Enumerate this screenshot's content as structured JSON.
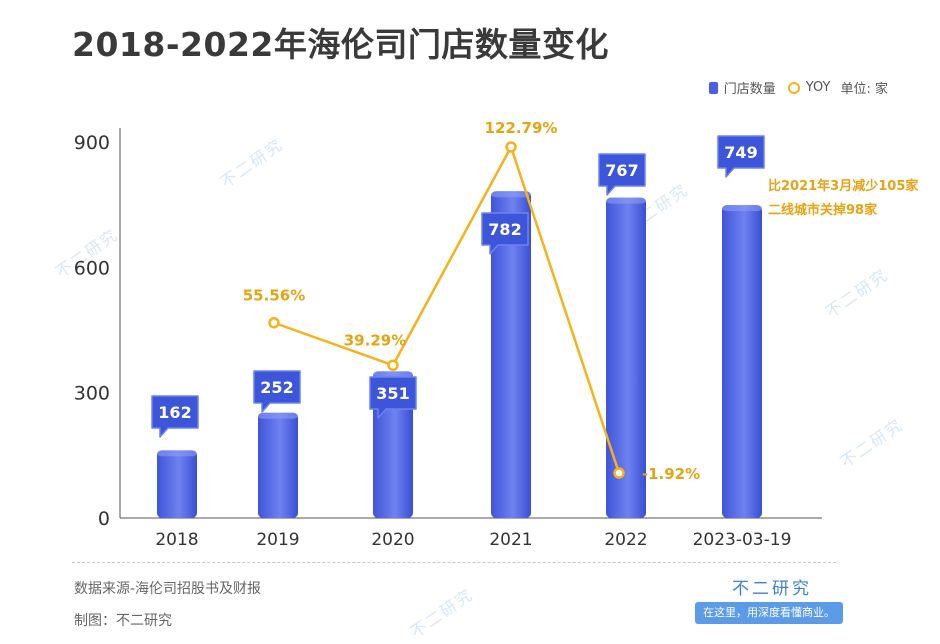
{
  "title": "2018-2022年海伦司门店数量变化",
  "legend": {
    "bar_label": "门店数量",
    "line_label": "YOY",
    "unit": "单位: 家"
  },
  "colors": {
    "bar": "#4b5fe0",
    "bar_light": "#8c9df6",
    "line": "#f5b21a",
    "annotation": "#e6a313",
    "callout": "#3d55d9"
  },
  "chart_data": {
    "type": "bar",
    "categories": [
      "2018",
      "2019",
      "2020",
      "2021",
      "2022",
      "2023-03-19"
    ],
    "series": [
      {
        "name": "门店数量",
        "type": "bar",
        "values": [
          162,
          252,
          351,
          782,
          767,
          749
        ],
        "labels": [
          "162",
          "252",
          "351",
          "782",
          "767",
          "749"
        ]
      },
      {
        "name": "YOY",
        "type": "line",
        "values": [
          null,
          55.56,
          39.29,
          122.79,
          -1.92,
          null
        ],
        "labels": [
          "",
          "55.56%",
          "39.29%",
          "122.79%",
          "-1.92%",
          ""
        ]
      }
    ],
    "yticks": [
      0,
      300,
      600,
      900
    ],
    "ylim": [
      0,
      900
    ],
    "unit": "单位: 家",
    "annotation_lines": [
      "比2021年3月减少105家",
      "二线城市关掉98家"
    ]
  },
  "footer": {
    "source": "数据来源-海伦司招股书及财报",
    "maker": "制图：不二研究"
  },
  "brand": {
    "name": "不二研究",
    "slogan": "在这里，用深度看懂商业。"
  },
  "watermark_text": "不二研究"
}
